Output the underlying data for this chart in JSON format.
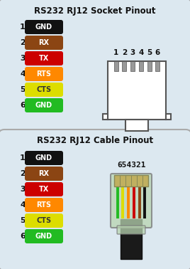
{
  "bg_color": "#000000",
  "panel_bg": "#dce8f0",
  "border_color": "#aaaaaa",
  "title1": "RS232 RJ12 Socket Pinout",
  "title2": "RS232 RJ12 Cable Pinout",
  "pins": [
    {
      "num": 1,
      "label": "GND",
      "bg": "#111111",
      "fg": "#ffffff"
    },
    {
      "num": 2,
      "label": "RX",
      "bg": "#8B4513",
      "fg": "#ffffff"
    },
    {
      "num": 3,
      "label": "TX",
      "bg": "#cc0000",
      "fg": "#ffffff"
    },
    {
      "num": 4,
      "label": "RTS",
      "bg": "#ff8800",
      "fg": "#ffffff"
    },
    {
      "num": 5,
      "label": "CTS",
      "bg": "#dddd00",
      "fg": "#333333"
    },
    {
      "num": 6,
      "label": "GND",
      "bg": "#22bb22",
      "fg": "#ffffff"
    }
  ],
  "socket_pin_labels": [
    "1",
    "2",
    "3",
    "4",
    "5",
    "6"
  ],
  "cable_pin_labels": "654321",
  "wire_colors": [
    "#22bb22",
    "#dddd00",
    "#ff8800",
    "#cc0000",
    "#8B4513",
    "#111111"
  ]
}
